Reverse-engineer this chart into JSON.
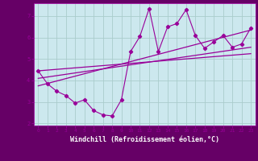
{
  "xlabel": "Windchill (Refroidissement éolien,°C)",
  "background_color": "#cce8ee",
  "grid_color": "#aacccc",
  "line_color": "#990099",
  "xlabel_bg": "#660066",
  "xlabel_fg": "#ffffff",
  "x_data": [
    0,
    1,
    2,
    3,
    4,
    5,
    6,
    7,
    8,
    9,
    10,
    11,
    12,
    13,
    14,
    15,
    16,
    17,
    18,
    19,
    20,
    21,
    22,
    23
  ],
  "y_scatter": [
    4.45,
    3.85,
    3.5,
    3.3,
    2.95,
    3.1,
    2.6,
    2.4,
    2.35,
    3.1,
    5.35,
    6.05,
    7.35,
    5.35,
    6.5,
    6.65,
    7.3,
    6.1,
    5.5,
    5.8,
    6.1,
    5.55,
    5.7,
    6.45
  ],
  "ylim": [
    1.9,
    7.6
  ],
  "xlim": [
    -0.5,
    23.5
  ],
  "yticks": [
    2,
    3,
    4,
    5,
    6,
    7
  ],
  "xticks": [
    0,
    1,
    2,
    3,
    4,
    5,
    6,
    7,
    8,
    9,
    10,
    11,
    12,
    13,
    14,
    15,
    16,
    17,
    18,
    19,
    20,
    21,
    22,
    23
  ],
  "reg_lines": [
    {
      "x0": 0,
      "y0": 3.75,
      "x1": 23,
      "y1": 6.35
    },
    {
      "x0": 0,
      "y0": 4.1,
      "x1": 23,
      "y1": 5.55
    },
    {
      "x0": 0,
      "y0": 4.45,
      "x1": 23,
      "y1": 5.25
    }
  ]
}
